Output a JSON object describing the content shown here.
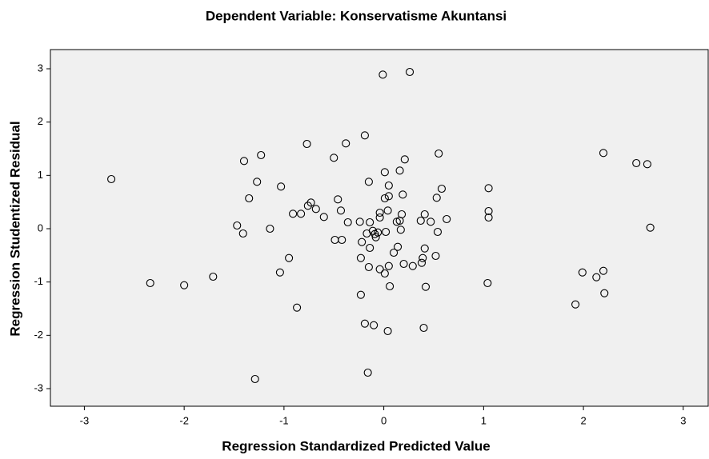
{
  "chart_data": {
    "type": "scatter",
    "title": "Dependent Variable: Konservatisme Akuntansi",
    "x_label": "Regression Standardized Predicted Value",
    "y_label": "Regression Studentized Residual",
    "x": [
      -2.73,
      -2.34,
      -2.0,
      -1.71,
      -1.47,
      -1.41,
      -1.4,
      -1.35,
      -1.27,
      -1.23,
      -1.29,
      -1.14,
      -1.04,
      -1.03,
      -0.95,
      -0.91,
      -0.87,
      -0.83,
      -0.77,
      -0.76,
      -0.73,
      -0.68,
      -0.6,
      -0.5,
      -0.49,
      -0.46,
      -0.43,
      -0.42,
      -0.38,
      -0.36,
      -0.24,
      -0.23,
      -0.23,
      -0.22,
      -0.19,
      -0.19,
      -0.17,
      -0.16,
      -0.15,
      -0.15,
      -0.14,
      -0.14,
      -0.11,
      -0.1,
      -0.09,
      -0.08,
      -0.06,
      -0.04,
      -0.04,
      -0.04,
      -0.01,
      0.01,
      0.01,
      0.02,
      0.01,
      0.04,
      0.05,
      0.05,
      0.04,
      0.05,
      0.06,
      0.1,
      0.13,
      0.14,
      0.16,
      0.16,
      0.17,
      0.18,
      0.19,
      0.2,
      0.21,
      0.26,
      0.29,
      0.37,
      0.38,
      0.39,
      0.41,
      0.41,
      0.4,
      0.42,
      0.47,
      0.52,
      0.53,
      0.54,
      0.55,
      0.58,
      0.63,
      1.05,
      1.05,
      1.05,
      1.04,
      1.92,
      1.99,
      2.13,
      2.2,
      2.2,
      2.21,
      2.53,
      2.64,
      2.67
    ],
    "values": [
      0.93,
      -1.02,
      -1.06,
      -0.9,
      0.06,
      -0.09,
      1.27,
      0.57,
      0.88,
      1.38,
      -2.82,
      0.0,
      -0.82,
      0.79,
      -0.55,
      0.28,
      -1.48,
      0.28,
      1.59,
      0.43,
      0.49,
      0.37,
      0.22,
      1.33,
      -0.21,
      0.55,
      0.34,
      -0.21,
      1.6,
      0.12,
      0.13,
      -0.55,
      -1.24,
      -0.25,
      1.75,
      -1.78,
      -0.09,
      -2.7,
      0.88,
      -0.72,
      0.12,
      -0.36,
      -0.04,
      -1.81,
      -0.1,
      -0.16,
      -0.07,
      0.21,
      0.3,
      -0.76,
      2.89,
      0.57,
      1.06,
      -0.06,
      -0.84,
      0.34,
      0.81,
      0.61,
      -1.92,
      -0.7,
      -1.08,
      -0.45,
      0.13,
      -0.34,
      0.15,
      1.09,
      -0.02,
      0.27,
      0.64,
      -0.66,
      1.3,
      2.94,
      -0.7,
      0.15,
      -0.64,
      -0.55,
      -0.37,
      0.27,
      -1.86,
      -1.09,
      0.13,
      -0.51,
      0.58,
      -0.06,
      1.41,
      0.75,
      0.18,
      0.76,
      0.33,
      0.21,
      -1.02,
      -1.42,
      -0.82,
      -0.91,
      -0.79,
      1.42,
      -1.21,
      1.23,
      1.21,
      0.02
    ],
    "xlim": [
      -3.34,
      3.25
    ],
    "ylim": [
      -3.33,
      3.36
    ],
    "xticks": [
      -3,
      -2,
      -1,
      0,
      1,
      2,
      3
    ],
    "yticks": [
      -3,
      -2,
      -1,
      0,
      1,
      2,
      3
    ],
    "color": "#000000",
    "background": "#f0f0f0"
  }
}
